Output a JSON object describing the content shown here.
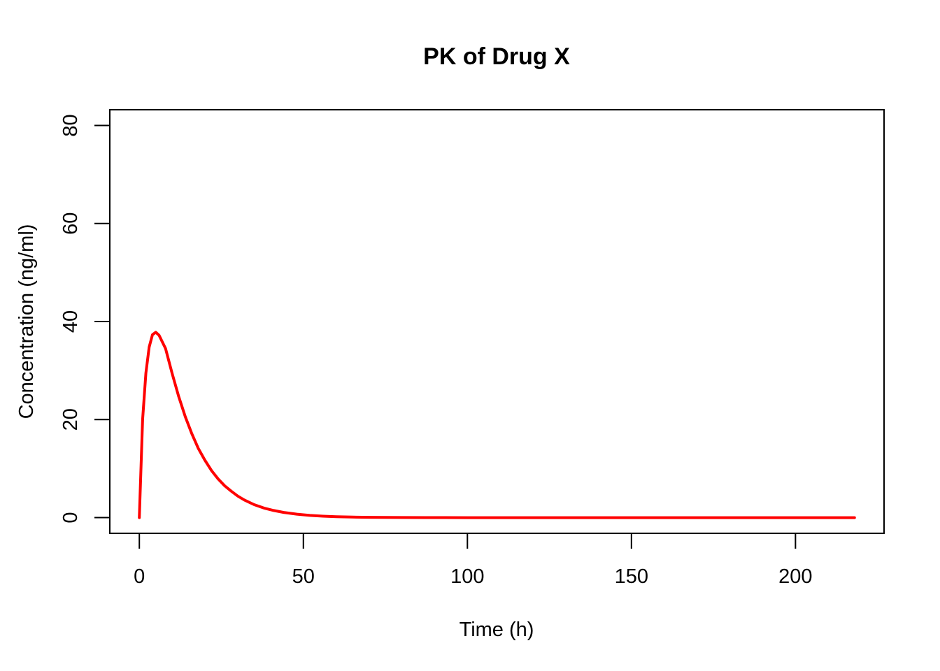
{
  "chart_data": {
    "type": "line",
    "title": "PK of Drug X",
    "xlabel": "Time (h)",
    "ylabel": "Concentration (ng/ml)",
    "xlim": [
      -9,
      227
    ],
    "ylim": [
      -3.2,
      83.2
    ],
    "xticks": [
      0,
      50,
      100,
      150,
      200
    ],
    "yticks": [
      0,
      20,
      40,
      60,
      80
    ],
    "grid": false,
    "legend": "none",
    "series": [
      {
        "color": "#ff0000",
        "x": [
          0,
          1,
          2,
          3,
          4,
          5,
          6,
          8,
          10,
          12,
          14,
          16,
          18,
          20,
          22,
          24,
          26,
          28,
          30,
          32,
          35,
          38,
          41,
          44,
          48,
          52,
          56,
          60,
          65,
          70,
          75,
          80,
          87.5,
          100,
          125,
          150,
          175,
          200,
          218
        ],
        "y": [
          0,
          20.0,
          29.5,
          34.8,
          37.3,
          37.8,
          37.2,
          34.5,
          29.4,
          24.7,
          20.6,
          17.1,
          14.1,
          11.7,
          9.6,
          7.9,
          6.5,
          5.4,
          4.4,
          3.6,
          2.65,
          1.95,
          1.45,
          1.07,
          0.7,
          0.45,
          0.3,
          0.19,
          0.11,
          0.06,
          0.03,
          0.02,
          0.01,
          0,
          0,
          0,
          0,
          0,
          0
        ]
      }
    ]
  }
}
